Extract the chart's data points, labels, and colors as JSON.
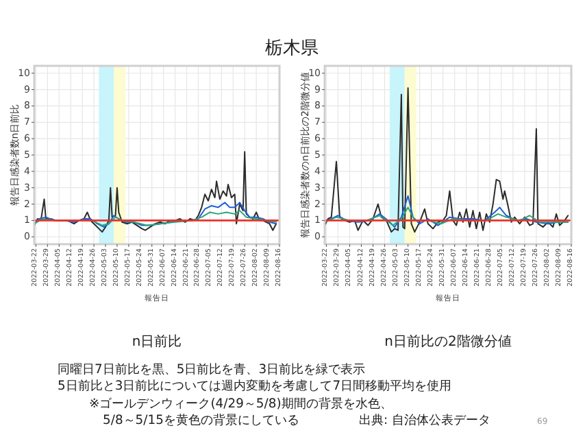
{
  "chart_data": [
    {
      "type": "other",
      "title": "栃木県",
      "annotations": [
        "同曜日7日前比を黒、5日前比を青、3日前比を緑で表示",
        "5日前比と3日前比については週内変動を考慮して7日間移動平均を使用",
        "※ゴールデンウィーク(4/29～5/8)期間の背景を水色、",
        "5/8～5/15を黄色の背景にしている",
        "出典: 自治体公表データ",
        "69"
      ]
    },
    {
      "type": "line",
      "title": "n日前比",
      "xlabel": "報告日",
      "ylabel": "報告日感染者数n日前比",
      "xlim": [
        "2022-03-21",
        "2022-08-16"
      ],
      "ylim": [
        -0.45,
        10.45
      ],
      "yticks": [
        0,
        1,
        2,
        3,
        4,
        5,
        6,
        7,
        8,
        9,
        10
      ],
      "xticks": [
        "2022-03-22",
        "2022-03-29",
        "2022-04-05",
        "2022-04-12",
        "2022-04-19",
        "2022-04-26",
        "2022-05-03",
        "2022-05-10",
        "2022-05-17",
        "2022-05-24",
        "2022-05-31",
        "2022-06-07",
        "2022-06-14",
        "2022-06-21",
        "2022-06-28",
        "2022-07-05",
        "2022-07-12",
        "2022-07-19",
        "2022-07-26",
        "2022-08-02",
        "2022-08-09",
        "2022-08-16"
      ],
      "grid": true,
      "bands": [
        {
          "axis": "x",
          "from": "2022-04-29",
          "to": "2022-05-08",
          "color": "#c8f4fc"
        },
        {
          "axis": "x",
          "from": "2022-05-08",
          "to": "2022-05-15",
          "color": "#fdfbd0"
        }
      ],
      "ref_lines": [
        {
          "axis": "y",
          "value": 1,
          "color": "#e8332a"
        }
      ],
      "series": [
        {
          "color": "#2b2b2b",
          "x": [
            "2022-03-21",
            "2022-03-23",
            "2022-03-25",
            "2022-03-27",
            "2022-03-28",
            "2022-03-31",
            "2022-04-03",
            "2022-04-10",
            "2022-04-14",
            "2022-04-17",
            "2022-04-20",
            "2022-04-22",
            "2022-04-24",
            "2022-04-27",
            "2022-04-29",
            "2022-05-01",
            "2022-05-03",
            "2022-05-05",
            "2022-05-06",
            "2022-05-07",
            "2022-05-09",
            "2022-05-10",
            "2022-05-11",
            "2022-05-13",
            "2022-05-16",
            "2022-05-19",
            "2022-05-22",
            "2022-05-25",
            "2022-05-27",
            "2022-05-30",
            "2022-06-02",
            "2022-06-05",
            "2022-06-08",
            "2022-06-11",
            "2022-06-14",
            "2022-06-17",
            "2022-06-20",
            "2022-06-23",
            "2022-06-26",
            "2022-06-28",
            "2022-06-30",
            "2022-07-02",
            "2022-07-04",
            "2022-07-06",
            "2022-07-08",
            "2022-07-09",
            "2022-07-11",
            "2022-07-13",
            "2022-07-15",
            "2022-07-16",
            "2022-07-18",
            "2022-07-20",
            "2022-07-21",
            "2022-07-23",
            "2022-07-25",
            "2022-07-26",
            "2022-07-27",
            "2022-07-29",
            "2022-07-31",
            "2022-08-02",
            "2022-08-04",
            "2022-08-06",
            "2022-08-08",
            "2022-08-10",
            "2022-08-12",
            "2022-08-14"
          ],
          "values": [
            0.7,
            1.1,
            1.0,
            2.3,
            1.1,
            1.1,
            1.0,
            1.0,
            0.8,
            1.0,
            1.1,
            1.5,
            1.0,
            0.7,
            0.5,
            0.3,
            0.6,
            1.0,
            3.0,
            1.2,
            1.3,
            3.0,
            1.5,
            0.9,
            0.8,
            0.9,
            0.7,
            0.5,
            0.4,
            0.6,
            0.8,
            0.9,
            0.8,
            1.0,
            1.0,
            1.1,
            0.9,
            1.1,
            1.0,
            1.3,
            1.8,
            2.6,
            2.2,
            2.9,
            2.4,
            3.4,
            2.3,
            2.8,
            2.5,
            3.2,
            2.4,
            2.6,
            0.8,
            2.0,
            1.6,
            5.2,
            1.4,
            1.2,
            1.1,
            1.5,
            1.0,
            1.0,
            0.9,
            0.8,
            0.4,
            0.8
          ]
        },
        {
          "color": "#1f5fd6",
          "x": [
            "2022-03-21",
            "2022-03-24",
            "2022-03-28",
            "2022-04-02",
            "2022-04-08",
            "2022-04-14",
            "2022-04-20",
            "2022-04-24",
            "2022-04-28",
            "2022-05-02",
            "2022-05-05",
            "2022-05-08",
            "2022-05-11",
            "2022-05-15",
            "2022-05-20",
            "2022-05-25",
            "2022-05-30",
            "2022-06-05",
            "2022-06-12",
            "2022-06-18",
            "2022-06-24",
            "2022-06-28",
            "2022-07-02",
            "2022-07-06",
            "2022-07-10",
            "2022-07-14",
            "2022-07-17",
            "2022-07-20",
            "2022-07-23",
            "2022-07-26",
            "2022-07-29",
            "2022-08-02",
            "2022-08-06",
            "2022-08-10",
            "2022-08-14"
          ],
          "values": [
            0.8,
            1.1,
            1.2,
            1.0,
            1.0,
            0.9,
            1.1,
            1.1,
            0.8,
            0.6,
            0.8,
            1.3,
            1.1,
            0.9,
            0.9,
            0.7,
            0.7,
            0.8,
            0.9,
            1.0,
            1.0,
            1.1,
            1.7,
            1.9,
            1.8,
            2.1,
            1.8,
            1.8,
            2.1,
            1.6,
            1.2,
            1.2,
            1.1,
            0.9,
            0.8
          ]
        },
        {
          "color": "#2aa57a",
          "x": [
            "2022-03-21",
            "2022-03-26",
            "2022-04-02",
            "2022-04-10",
            "2022-04-18",
            "2022-04-25",
            "2022-05-01",
            "2022-05-05",
            "2022-05-09",
            "2022-05-13",
            "2022-05-20",
            "2022-05-28",
            "2022-06-05",
            "2022-06-14",
            "2022-06-24",
            "2022-06-30",
            "2022-07-05",
            "2022-07-10",
            "2022-07-15",
            "2022-07-20",
            "2022-07-23",
            "2022-07-27",
            "2022-08-02",
            "2022-08-08",
            "2022-08-14"
          ],
          "values": [
            0.8,
            1.1,
            1.0,
            1.0,
            1.0,
            1.0,
            0.7,
            0.8,
            1.2,
            1.0,
            0.9,
            0.7,
            0.8,
            0.9,
            1.0,
            1.2,
            1.5,
            1.4,
            1.5,
            1.4,
            1.6,
            1.2,
            1.1,
            1.0,
            0.9
          ]
        }
      ]
    },
    {
      "type": "line",
      "title": "n日前比の2階微分値",
      "xlabel": "報告日",
      "ylabel": "報告日感染者数のn日前比の2階微分値",
      "xlim": [
        "2022-03-21",
        "2022-08-16"
      ],
      "ylim": [
        -0.45,
        10.45
      ],
      "yticks": [
        0,
        1,
        2,
        3,
        4,
        5,
        6,
        7,
        8,
        9,
        10
      ],
      "xticks": [
        "2022-03-22",
        "2022-03-29",
        "2022-04-05",
        "2022-04-12",
        "2022-04-19",
        "2022-04-26",
        "2022-05-03",
        "2022-05-10",
        "2022-05-17",
        "2022-05-24",
        "2022-05-31",
        "2022-06-07",
        "2022-06-14",
        "2022-06-21",
        "2022-06-28",
        "2022-07-05",
        "2022-07-12",
        "2022-07-19",
        "2022-07-26",
        "2022-08-02",
        "2022-08-09",
        "2022-08-16"
      ],
      "grid": true,
      "bands": [
        {
          "axis": "x",
          "from": "2022-04-29",
          "to": "2022-05-08",
          "color": "#c8f4fc"
        },
        {
          "axis": "x",
          "from": "2022-05-08",
          "to": "2022-05-15",
          "color": "#fdfbd0"
        }
      ],
      "ref_lines": [
        {
          "axis": "y",
          "value": 1,
          "color": "#e8332a"
        }
      ],
      "series": [
        {
          "color": "#2b2b2b",
          "x": [
            "2022-03-21",
            "2022-03-23",
            "2022-03-25",
            "2022-03-28",
            "2022-03-30",
            "2022-04-02",
            "2022-04-05",
            "2022-04-08",
            "2022-04-10",
            "2022-04-13",
            "2022-04-16",
            "2022-04-19",
            "2022-04-22",
            "2022-04-24",
            "2022-04-27",
            "2022-04-30",
            "2022-05-02",
            "2022-05-04",
            "2022-05-06",
            "2022-05-07",
            "2022-05-08",
            "2022-05-10",
            "2022-05-12",
            "2022-05-14",
            "2022-05-17",
            "2022-05-20",
            "2022-05-22",
            "2022-05-25",
            "2022-05-28",
            "2022-05-31",
            "2022-06-02",
            "2022-06-04",
            "2022-06-06",
            "2022-06-08",
            "2022-06-10",
            "2022-06-12",
            "2022-06-14",
            "2022-06-16",
            "2022-06-18",
            "2022-06-20",
            "2022-06-22",
            "2022-06-24",
            "2022-06-26",
            "2022-06-28",
            "2022-06-30",
            "2022-07-02",
            "2022-07-04",
            "2022-07-06",
            "2022-07-07",
            "2022-07-09",
            "2022-07-11",
            "2022-07-13",
            "2022-07-16",
            "2022-07-19",
            "2022-07-22",
            "2022-07-24",
            "2022-07-26",
            "2022-07-27",
            "2022-07-30",
            "2022-08-02",
            "2022-08-05",
            "2022-08-07",
            "2022-08-09",
            "2022-08-12",
            "2022-08-14"
          ],
          "values": [
            0.7,
            1.1,
            1.2,
            4.6,
            1.2,
            1.0,
            0.9,
            1.0,
            0.4,
            1.0,
            0.7,
            1.1,
            2.0,
            1.2,
            1.0,
            0.3,
            0.5,
            0.4,
            8.7,
            0.6,
            0.5,
            9.1,
            0.8,
            0.3,
            0.9,
            1.7,
            0.8,
            0.5,
            0.9,
            1.0,
            1.3,
            2.8,
            1.0,
            0.7,
            1.5,
            0.9,
            1.7,
            0.6,
            1.6,
            0.5,
            1.5,
            0.4,
            1.4,
            0.9,
            2.0,
            3.5,
            3.4,
            2.3,
            2.8,
            1.9,
            0.9,
            1.2,
            0.8,
            1.2,
            0.7,
            0.8,
            6.6,
            0.8,
            0.6,
            0.9,
            0.6,
            1.4,
            0.7,
            1.0,
            1.3
          ]
        },
        {
          "color": "#1f5fd6",
          "x": [
            "2022-03-21",
            "2022-03-25",
            "2022-03-29",
            "2022-04-03",
            "2022-04-10",
            "2022-04-17",
            "2022-04-23",
            "2022-04-28",
            "2022-05-02",
            "2022-05-06",
            "2022-05-10",
            "2022-05-13",
            "2022-05-17",
            "2022-05-22",
            "2022-05-28",
            "2022-06-04",
            "2022-06-10",
            "2022-06-18",
            "2022-06-25",
            "2022-07-01",
            "2022-07-04",
            "2022-07-08",
            "2022-07-14",
            "2022-07-20",
            "2022-07-26",
            "2022-08-02",
            "2022-08-08",
            "2022-08-14"
          ],
          "values": [
            0.9,
            1.1,
            1.3,
            1.0,
            0.9,
            1.0,
            1.4,
            1.0,
            0.6,
            1.2,
            2.5,
            1.2,
            0.8,
            1.1,
            0.7,
            1.2,
            1.1,
            1.1,
            1.0,
            1.5,
            1.8,
            1.3,
            1.0,
            1.1,
            0.9,
            0.8,
            0.9,
            0.9
          ]
        },
        {
          "color": "#2aa57a",
          "x": [
            "2022-03-21",
            "2022-03-28",
            "2022-04-05",
            "2022-04-15",
            "2022-04-23",
            "2022-05-01",
            "2022-05-06",
            "2022-05-10",
            "2022-05-14",
            "2022-05-22",
            "2022-05-30",
            "2022-06-06",
            "2022-06-16",
            "2022-06-26",
            "2022-07-03",
            "2022-07-08",
            "2022-07-16",
            "2022-07-22",
            "2022-07-28",
            "2022-08-05",
            "2022-08-14"
          ],
          "values": [
            0.9,
            1.2,
            1.0,
            1.0,
            1.3,
            0.7,
            1.1,
            1.8,
            1.0,
            1.0,
            0.8,
            1.1,
            1.0,
            1.0,
            1.4,
            1.2,
            1.0,
            1.3,
            0.9,
            0.9,
            0.9
          ]
        }
      ]
    }
  ]
}
